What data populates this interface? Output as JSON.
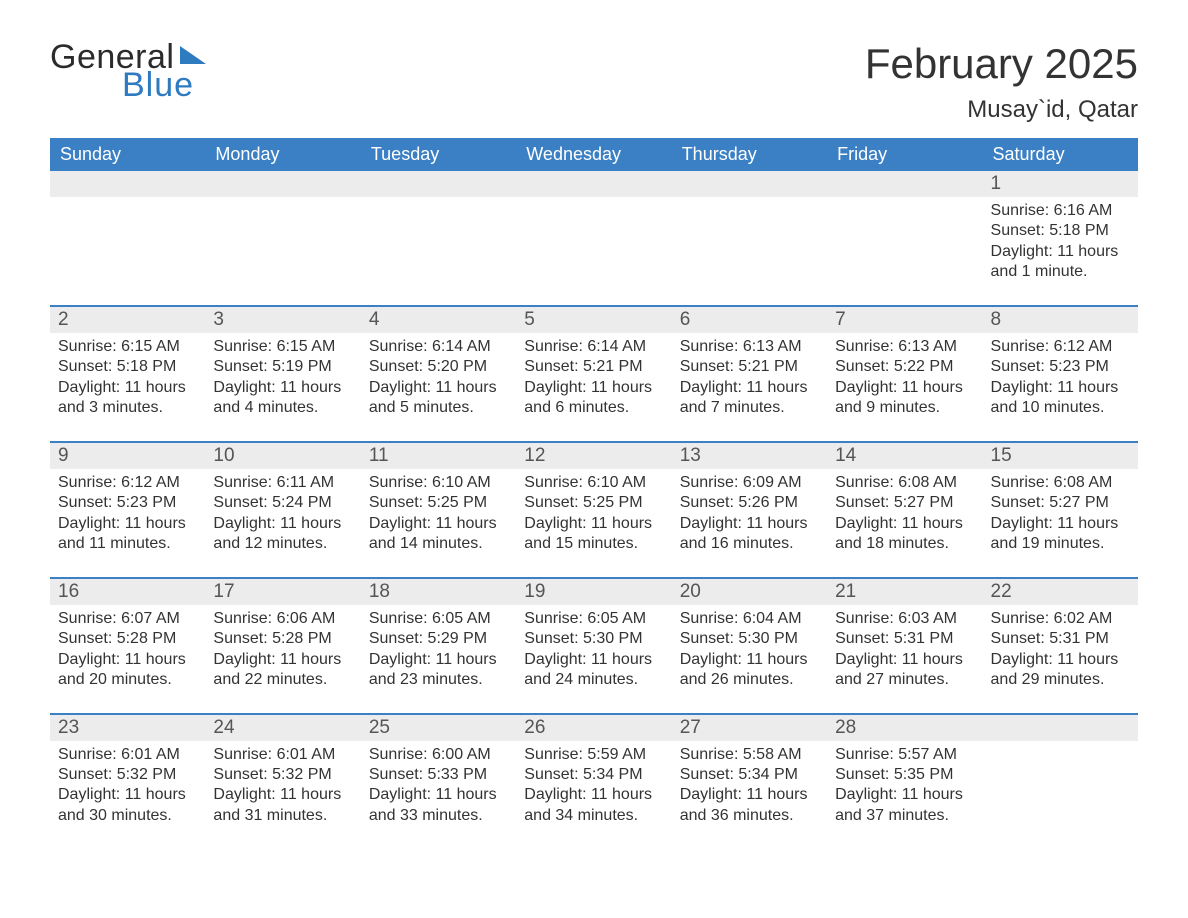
{
  "brand": {
    "word1": "General",
    "word2": "Blue",
    "word1_color": "#2b2b2b",
    "word2_color": "#2f7bbf",
    "flag_color": "#2f7bbf"
  },
  "title": "February 2025",
  "location": "Musay`id, Qatar",
  "colors": {
    "header_bg": "#3b7fc4",
    "header_text": "#ffffff",
    "daynum_bg": "#ececec",
    "daynum_text": "#555555",
    "body_text": "#333333",
    "week_border": "#3b7fc4",
    "page_bg": "#ffffff"
  },
  "day_names": [
    "Sunday",
    "Monday",
    "Tuesday",
    "Wednesday",
    "Thursday",
    "Friday",
    "Saturday"
  ],
  "weeks": [
    [
      null,
      null,
      null,
      null,
      null,
      null,
      {
        "n": "1",
        "sunrise": "6:16 AM",
        "sunset": "5:18 PM",
        "daylight": "11 hours and 1 minute."
      }
    ],
    [
      {
        "n": "2",
        "sunrise": "6:15 AM",
        "sunset": "5:18 PM",
        "daylight": "11 hours and 3 minutes."
      },
      {
        "n": "3",
        "sunrise": "6:15 AM",
        "sunset": "5:19 PM",
        "daylight": "11 hours and 4 minutes."
      },
      {
        "n": "4",
        "sunrise": "6:14 AM",
        "sunset": "5:20 PM",
        "daylight": "11 hours and 5 minutes."
      },
      {
        "n": "5",
        "sunrise": "6:14 AM",
        "sunset": "5:21 PM",
        "daylight": "11 hours and 6 minutes."
      },
      {
        "n": "6",
        "sunrise": "6:13 AM",
        "sunset": "5:21 PM",
        "daylight": "11 hours and 7 minutes."
      },
      {
        "n": "7",
        "sunrise": "6:13 AM",
        "sunset": "5:22 PM",
        "daylight": "11 hours and 9 minutes."
      },
      {
        "n": "8",
        "sunrise": "6:12 AM",
        "sunset": "5:23 PM",
        "daylight": "11 hours and 10 minutes."
      }
    ],
    [
      {
        "n": "9",
        "sunrise": "6:12 AM",
        "sunset": "5:23 PM",
        "daylight": "11 hours and 11 minutes."
      },
      {
        "n": "10",
        "sunrise": "6:11 AM",
        "sunset": "5:24 PM",
        "daylight": "11 hours and 12 minutes."
      },
      {
        "n": "11",
        "sunrise": "6:10 AM",
        "sunset": "5:25 PM",
        "daylight": "11 hours and 14 minutes."
      },
      {
        "n": "12",
        "sunrise": "6:10 AM",
        "sunset": "5:25 PM",
        "daylight": "11 hours and 15 minutes."
      },
      {
        "n": "13",
        "sunrise": "6:09 AM",
        "sunset": "5:26 PM",
        "daylight": "11 hours and 16 minutes."
      },
      {
        "n": "14",
        "sunrise": "6:08 AM",
        "sunset": "5:27 PM",
        "daylight": "11 hours and 18 minutes."
      },
      {
        "n": "15",
        "sunrise": "6:08 AM",
        "sunset": "5:27 PM",
        "daylight": "11 hours and 19 minutes."
      }
    ],
    [
      {
        "n": "16",
        "sunrise": "6:07 AM",
        "sunset": "5:28 PM",
        "daylight": "11 hours and 20 minutes."
      },
      {
        "n": "17",
        "sunrise": "6:06 AM",
        "sunset": "5:28 PM",
        "daylight": "11 hours and 22 minutes."
      },
      {
        "n": "18",
        "sunrise": "6:05 AM",
        "sunset": "5:29 PM",
        "daylight": "11 hours and 23 minutes."
      },
      {
        "n": "19",
        "sunrise": "6:05 AM",
        "sunset": "5:30 PM",
        "daylight": "11 hours and 24 minutes."
      },
      {
        "n": "20",
        "sunrise": "6:04 AM",
        "sunset": "5:30 PM",
        "daylight": "11 hours and 26 minutes."
      },
      {
        "n": "21",
        "sunrise": "6:03 AM",
        "sunset": "5:31 PM",
        "daylight": "11 hours and 27 minutes."
      },
      {
        "n": "22",
        "sunrise": "6:02 AM",
        "sunset": "5:31 PM",
        "daylight": "11 hours and 29 minutes."
      }
    ],
    [
      {
        "n": "23",
        "sunrise": "6:01 AM",
        "sunset": "5:32 PM",
        "daylight": "11 hours and 30 minutes."
      },
      {
        "n": "24",
        "sunrise": "6:01 AM",
        "sunset": "5:32 PM",
        "daylight": "11 hours and 31 minutes."
      },
      {
        "n": "25",
        "sunrise": "6:00 AM",
        "sunset": "5:33 PM",
        "daylight": "11 hours and 33 minutes."
      },
      {
        "n": "26",
        "sunrise": "5:59 AM",
        "sunset": "5:34 PM",
        "daylight": "11 hours and 34 minutes."
      },
      {
        "n": "27",
        "sunrise": "5:58 AM",
        "sunset": "5:34 PM",
        "daylight": "11 hours and 36 minutes."
      },
      {
        "n": "28",
        "sunrise": "5:57 AM",
        "sunset": "5:35 PM",
        "daylight": "11 hours and 37 minutes."
      },
      null
    ]
  ],
  "labels": {
    "sunrise": "Sunrise: ",
    "sunset": "Sunset: ",
    "daylight": "Daylight: "
  }
}
